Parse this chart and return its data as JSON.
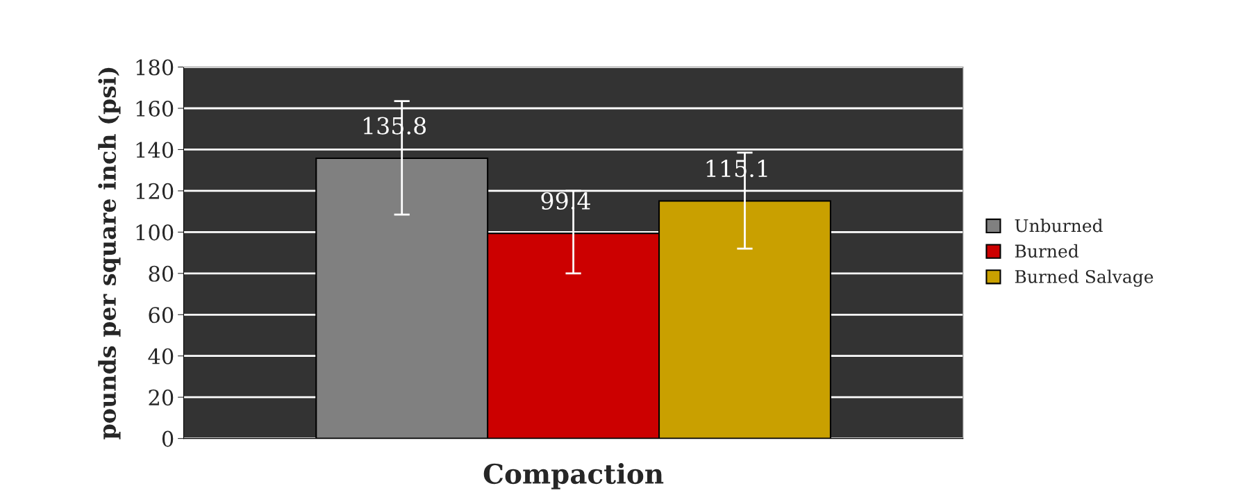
{
  "chart_data": {
    "type": "bar",
    "xlabel": "Compaction",
    "ylabel": "pounds per square inch (psi)",
    "categories": [
      null
    ],
    "series": [
      {
        "name": "Unburned",
        "color": "#808080",
        "values": [
          135.8
        ],
        "errors": [
          [
            108.5,
            163.5
          ]
        ]
      },
      {
        "name": "Burned",
        "color": "#cc0000",
        "values": [
          99.4
        ],
        "errors": [
          [
            80,
            120
          ]
        ]
      },
      {
        "name": "Burned Salvage",
        "color": "#c9a000",
        "values": [
          115.1
        ],
        "errors": [
          [
            92,
            138.5
          ]
        ]
      }
    ],
    "ylim": [
      0,
      180
    ],
    "yticks": [
      0,
      20,
      40,
      60,
      80,
      100,
      120,
      140,
      160,
      180
    ],
    "grid": "y",
    "legend": "right",
    "data_labels": true
  }
}
